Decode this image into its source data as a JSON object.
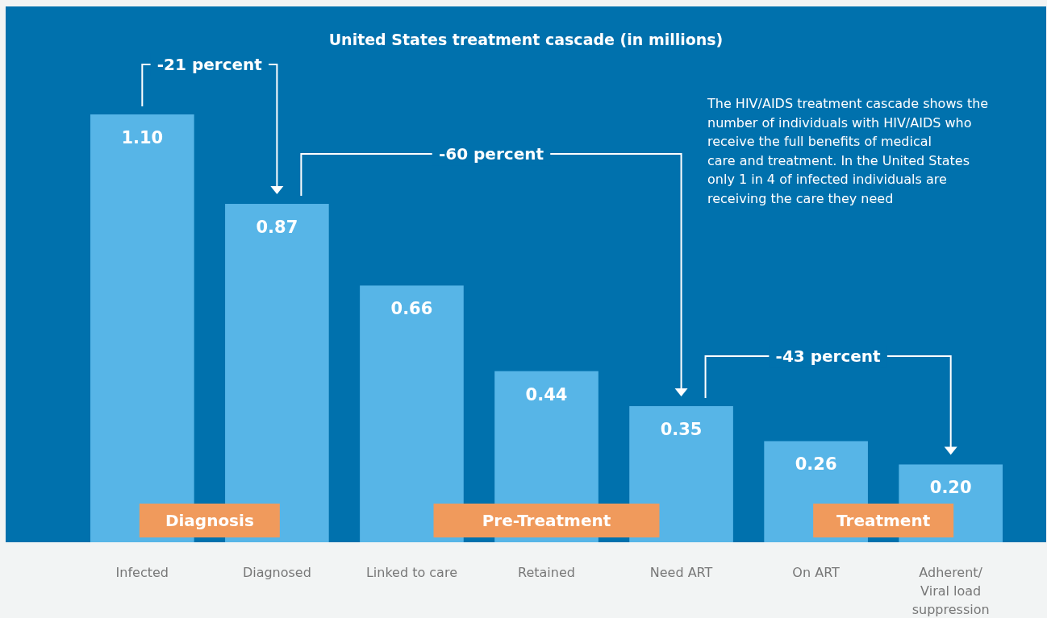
{
  "chart_data": {
    "type": "bar",
    "title": "United States treatment cascade (in millions)",
    "categories": [
      "Infected",
      "Diagnosed",
      "Linked to care",
      "Retained",
      "Need ART",
      "On ART",
      "Adherent/ Viral load suppression"
    ],
    "values": [
      1.1,
      0.87,
      0.66,
      0.44,
      0.35,
      0.26,
      0.2
    ],
    "value_labels": [
      "1.10",
      "0.87",
      "0.66",
      "0.44",
      "0.35",
      "0.26",
      "0.20"
    ],
    "color": "#57b5e7",
    "annotations": [
      "-21 percent",
      "-60 percent",
      "-43 percent",
      "The HIV/AIDS treatment cascade shows the number of individuals with HIV/AIDS who receive the full benefits of medical care and treatment. In the United States only 1 in 4 of infected individuals are receiving the care they need",
      "Diagnosis",
      "Pre-Treatment",
      "Treatment"
    ]
  }
}
